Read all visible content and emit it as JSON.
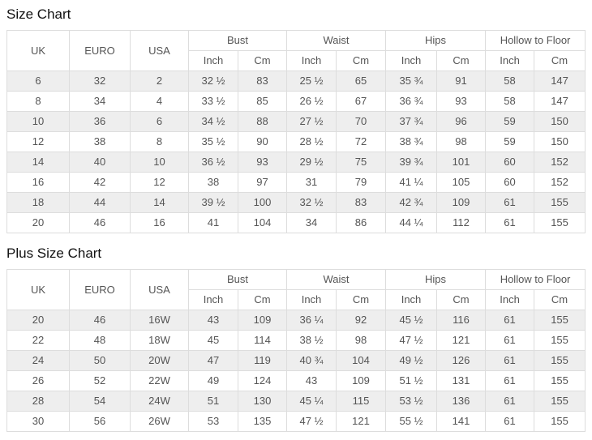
{
  "colors": {
    "row_stripe": "#eeeeee",
    "border": "#dddddd",
    "text": "#555555",
    "title": "#111111",
    "background": "#ffffff"
  },
  "size_chart": {
    "title": "Size Chart",
    "header": {
      "uk": "UK",
      "euro": "EURO",
      "usa": "USA",
      "bust": "Bust",
      "waist": "Waist",
      "hips": "Hips",
      "hollow_to_floor": "Hollow to Floor",
      "inch": "Inch",
      "cm": "Cm"
    },
    "rows": [
      [
        "6",
        "32",
        "2",
        "32 ½",
        "83",
        "25 ½",
        "65",
        "35 ¾",
        "91",
        "58",
        "147"
      ],
      [
        "8",
        "34",
        "4",
        "33 ½",
        "85",
        "26 ½",
        "67",
        "36 ¾",
        "93",
        "58",
        "147"
      ],
      [
        "10",
        "36",
        "6",
        "34 ½",
        "88",
        "27 ½",
        "70",
        "37 ¾",
        "96",
        "59",
        "150"
      ],
      [
        "12",
        "38",
        "8",
        "35 ½",
        "90",
        "28 ½",
        "72",
        "38 ¾",
        "98",
        "59",
        "150"
      ],
      [
        "14",
        "40",
        "10",
        "36 ½",
        "93",
        "29 ½",
        "75",
        "39 ¾",
        "101",
        "60",
        "152"
      ],
      [
        "16",
        "42",
        "12",
        "38",
        "97",
        "31",
        "79",
        "41 ¼",
        "105",
        "60",
        "152"
      ],
      [
        "18",
        "44",
        "14",
        "39 ½",
        "100",
        "32 ½",
        "83",
        "42 ¾",
        "109",
        "61",
        "155"
      ],
      [
        "20",
        "46",
        "16",
        "41",
        "104",
        "34",
        "86",
        "44 ¼",
        "112",
        "61",
        "155"
      ]
    ]
  },
  "plus_size_chart": {
    "title": "Plus Size Chart",
    "header": {
      "uk": "UK",
      "euro": "EURO",
      "usa": "USA",
      "bust": "Bust",
      "waist": "Waist",
      "hips": "Hips",
      "hollow_to_floor": "Hollow to Floor",
      "inch": "Inch",
      "cm": "Cm"
    },
    "rows": [
      [
        "20",
        "46",
        "16W",
        "43",
        "109",
        "36 ¼",
        "92",
        "45 ½",
        "116",
        "61",
        "155"
      ],
      [
        "22",
        "48",
        "18W",
        "45",
        "114",
        "38 ½",
        "98",
        "47 ½",
        "121",
        "61",
        "155"
      ],
      [
        "24",
        "50",
        "20W",
        "47",
        "119",
        "40 ¾",
        "104",
        "49 ½",
        "126",
        "61",
        "155"
      ],
      [
        "26",
        "52",
        "22W",
        "49",
        "124",
        "43",
        "109",
        "51 ½",
        "131",
        "61",
        "155"
      ],
      [
        "28",
        "54",
        "24W",
        "51",
        "130",
        "45 ¼",
        "115",
        "53 ½",
        "136",
        "61",
        "155"
      ],
      [
        "30",
        "56",
        "26W",
        "53",
        "135",
        "47 ½",
        "121",
        "55 ½",
        "141",
        "61",
        "155"
      ]
    ]
  }
}
